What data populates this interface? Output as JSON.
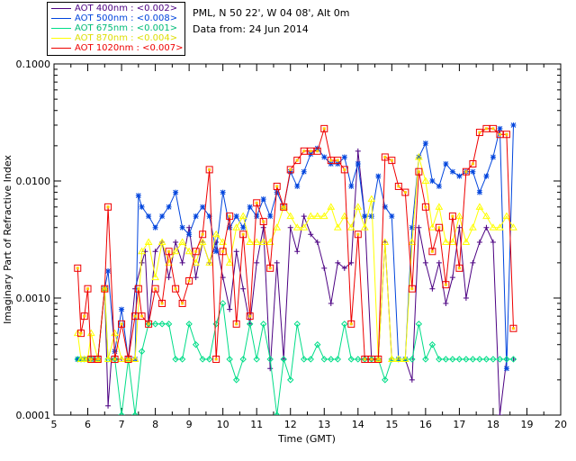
{
  "chart_data": {
    "type": "line",
    "site_line": "PML, N 50 22', W 04 08', Alt 0m",
    "date_line": "Data from: 24 Jun 2014",
    "xlabel": "Time (GMT)",
    "ylabel": "Imaginary Part of Refractive Index",
    "xlim": [
      5,
      20
    ],
    "ylim": [
      0.0001,
      0.1
    ],
    "yscale": "log",
    "x_ticks": [
      "5",
      "6",
      "7",
      "8",
      "9",
      "10",
      "11",
      "12",
      "13",
      "14",
      "15",
      "16",
      "17",
      "18",
      "19",
      "20"
    ],
    "y_ticks": [
      "0.0001",
      "0.0010",
      "0.0100",
      "0.1000"
    ],
    "series": [
      {
        "name": "AOT  400nm : <0.002>",
        "color": "#4b0082",
        "marker": "plus",
        "x": [
          5.7,
          5.8,
          5.9,
          6.0,
          6.1,
          6.3,
          6.5,
          6.6,
          6.7,
          6.8,
          7.0,
          7.2,
          7.4,
          7.6,
          7.7,
          7.8,
          8.0,
          8.2,
          8.4,
          8.6,
          8.8,
          9.0,
          9.2,
          9.4,
          9.6,
          9.8,
          10.0,
          10.2,
          10.4,
          10.6,
          10.8,
          11.0,
          11.2,
          11.4,
          11.6,
          11.8,
          12.0,
          12.2,
          12.4,
          12.6,
          12.8,
          13.0,
          13.2,
          13.4,
          13.6,
          13.8,
          14.0,
          14.2,
          14.4,
          14.6,
          14.8,
          15.0,
          15.2,
          15.4,
          15.6,
          15.8,
          16.0,
          16.2,
          16.4,
          16.6,
          16.8,
          17.0,
          17.2,
          17.4,
          17.6,
          17.8,
          18.0,
          18.2,
          18.4,
          18.6
        ],
        "values": [
          0.0003,
          0.0003,
          0.0003,
          0.0003,
          0.0003,
          0.0003,
          0.0012,
          0.00012,
          0.0003,
          0.0003,
          0.0003,
          0.0003,
          0.0012,
          0.002,
          0.0025,
          0.0006,
          0.0025,
          0.003,
          0.0015,
          0.003,
          0.002,
          0.004,
          0.0015,
          0.003,
          0.002,
          0.003,
          0.0015,
          0.0008,
          0.0025,
          0.0012,
          0.0006,
          0.002,
          0.004,
          0.00025,
          0.002,
          0.0003,
          0.004,
          0.0025,
          0.005,
          0.0035,
          0.003,
          0.0018,
          0.0009,
          0.002,
          0.0018,
          0.002,
          0.018,
          0.005,
          0.0003,
          0.0003,
          0.003,
          0.0003,
          0.0003,
          0.0003,
          0.0002,
          0.004,
          0.002,
          0.0012,
          0.002,
          0.0009,
          0.0015,
          0.004,
          0.001,
          0.002,
          0.003,
          0.004,
          0.003,
          0.0001,
          0.0003,
          0.0003
        ]
      },
      {
        "name": "AOT  500nm : <0.008>",
        "color": "#0044dd",
        "marker": "asterisk",
        "x": [
          5.7,
          5.8,
          5.9,
          6.0,
          6.1,
          6.3,
          6.5,
          6.6,
          6.8,
          7.0,
          7.2,
          7.4,
          7.5,
          7.6,
          7.8,
          8.0,
          8.2,
          8.4,
          8.6,
          8.8,
          9.0,
          9.2,
          9.4,
          9.6,
          9.8,
          10.0,
          10.2,
          10.4,
          10.6,
          10.8,
          11.0,
          11.2,
          11.4,
          11.6,
          11.8,
          12.0,
          12.2,
          12.4,
          12.6,
          12.8,
          13.0,
          13.2,
          13.4,
          13.6,
          13.8,
          14.0,
          14.2,
          14.4,
          14.6,
          14.8,
          15.0,
          15.2,
          15.4,
          15.6,
          15.8,
          16.0,
          16.2,
          16.4,
          16.6,
          16.8,
          17.0,
          17.2,
          17.4,
          17.6,
          17.8,
          18.0,
          18.2,
          18.4,
          18.6
        ],
        "values": [
          0.0003,
          0.0003,
          0.0003,
          0.0003,
          0.0003,
          0.0003,
          0.0012,
          0.0017,
          0.00035,
          0.0008,
          0.0003,
          0.0003,
          0.0075,
          0.006,
          0.005,
          0.004,
          0.005,
          0.006,
          0.008,
          0.004,
          0.0035,
          0.005,
          0.006,
          0.005,
          0.0025,
          0.008,
          0.004,
          0.005,
          0.004,
          0.006,
          0.005,
          0.007,
          0.005,
          0.008,
          0.006,
          0.012,
          0.009,
          0.012,
          0.017,
          0.019,
          0.016,
          0.014,
          0.014,
          0.016,
          0.009,
          0.014,
          0.005,
          0.005,
          0.011,
          0.006,
          0.005,
          0.0003,
          0.0003,
          0.004,
          0.016,
          0.021,
          0.01,
          0.009,
          0.014,
          0.012,
          0.011,
          0.012,
          0.012,
          0.008,
          0.011,
          0.016,
          0.028,
          0.00025,
          0.03
        ]
      },
      {
        "name": "AOT  675nm : <0.001>",
        "color": "#00dd88",
        "marker": "diamond",
        "x": [
          5.7,
          5.8,
          5.9,
          6.0,
          6.1,
          6.3,
          6.5,
          6.6,
          6.8,
          7.0,
          7.2,
          7.4,
          7.6,
          7.8,
          8.0,
          8.2,
          8.4,
          8.6,
          8.8,
          9.0,
          9.2,
          9.4,
          9.6,
          9.8,
          10.0,
          10.2,
          10.4,
          10.6,
          10.8,
          11.0,
          11.2,
          11.4,
          11.6,
          11.8,
          12.0,
          12.2,
          12.4,
          12.6,
          12.8,
          13.0,
          13.2,
          13.4,
          13.6,
          13.8,
          14.0,
          14.2,
          14.4,
          14.6,
          14.8,
          15.0,
          15.2,
          15.4,
          15.6,
          15.8,
          16.0,
          16.2,
          16.4,
          16.6,
          16.8,
          17.0,
          17.2,
          17.4,
          17.6,
          17.8,
          18.0,
          18.2,
          18.4,
          18.6
        ],
        "values": [
          0.0003,
          0.0003,
          0.0003,
          0.0003,
          0.0003,
          0.0003,
          0.0012,
          0.0003,
          0.0003,
          0.0001,
          0.0003,
          0.0001,
          0.00035,
          0.0006,
          0.0006,
          0.0006,
          0.0006,
          0.0003,
          0.0003,
          0.0006,
          0.0004,
          0.0003,
          0.0003,
          0.0006,
          0.0009,
          0.0003,
          0.0002,
          0.0003,
          0.0006,
          0.0003,
          0.0006,
          0.0003,
          0.0001,
          0.0003,
          0.0002,
          0.0006,
          0.0003,
          0.0003,
          0.0004,
          0.0003,
          0.0003,
          0.0003,
          0.0006,
          0.0003,
          0.0003,
          0.0003,
          0.0003,
          0.0003,
          0.0002,
          0.0003,
          0.0003,
          0.0003,
          0.0003,
          0.0006,
          0.0003,
          0.0004,
          0.0003,
          0.0003,
          0.0003,
          0.0003,
          0.0003,
          0.0003,
          0.0003,
          0.0003,
          0.0003,
          0.0003,
          0.0003,
          0.0003
        ]
      },
      {
        "name": "AOT  870nm : <0.004>",
        "color": "#ffff00",
        "marker": "triangle",
        "x": [
          5.7,
          5.8,
          5.9,
          6.0,
          6.1,
          6.3,
          6.5,
          6.6,
          6.8,
          7.0,
          7.2,
          7.4,
          7.6,
          7.8,
          8.0,
          8.2,
          8.4,
          8.6,
          8.8,
          9.0,
          9.2,
          9.4,
          9.6,
          9.8,
          10.0,
          10.2,
          10.4,
          10.6,
          10.8,
          11.0,
          11.2,
          11.4,
          11.6,
          11.8,
          12.0,
          12.2,
          12.4,
          12.6,
          12.8,
          13.0,
          13.2,
          13.4,
          13.6,
          13.8,
          14.0,
          14.2,
          14.4,
          14.6,
          14.8,
          15.0,
          15.2,
          15.4,
          15.6,
          15.8,
          16.0,
          16.2,
          16.4,
          16.6,
          16.8,
          17.0,
          17.2,
          17.4,
          17.6,
          17.8,
          18.0,
          18.2,
          18.4,
          18.6
        ],
        "values": [
          0.0005,
          0.0003,
          0.0003,
          0.0003,
          0.0005,
          0.0003,
          0.0012,
          0.0003,
          0.0005,
          0.0003,
          0.0003,
          0.0003,
          0.0025,
          0.003,
          0.0015,
          0.003,
          0.002,
          0.0025,
          0.003,
          0.0025,
          0.002,
          0.003,
          0.002,
          0.0035,
          0.003,
          0.002,
          0.004,
          0.005,
          0.003,
          0.003,
          0.003,
          0.003,
          0.004,
          0.006,
          0.005,
          0.004,
          0.004,
          0.005,
          0.005,
          0.005,
          0.006,
          0.004,
          0.005,
          0.004,
          0.006,
          0.004,
          0.007,
          0.0003,
          0.003,
          0.0003,
          0.0003,
          0.0003,
          0.003,
          0.016,
          0.01,
          0.004,
          0.006,
          0.003,
          0.003,
          0.005,
          0.003,
          0.004,
          0.006,
          0.005,
          0.004,
          0.004,
          0.005,
          0.004
        ]
      },
      {
        "name": "AOT 1020nm : <0.007>",
        "color": "#ee0000",
        "marker": "square",
        "x": [
          5.7,
          5.8,
          5.9,
          6.0,
          6.1,
          6.3,
          6.5,
          6.6,
          6.8,
          7.0,
          7.2,
          7.4,
          7.5,
          7.6,
          7.8,
          8.0,
          8.2,
          8.4,
          8.6,
          8.8,
          9.0,
          9.2,
          9.4,
          9.6,
          9.8,
          10.0,
          10.2,
          10.4,
          10.6,
          10.8,
          11.0,
          11.2,
          11.4,
          11.6,
          11.8,
          12.0,
          12.2,
          12.4,
          12.6,
          12.8,
          13.0,
          13.2,
          13.4,
          13.6,
          13.8,
          14.0,
          14.2,
          14.4,
          14.6,
          14.8,
          15.0,
          15.2,
          15.4,
          15.6,
          15.8,
          16.0,
          16.2,
          16.4,
          16.6,
          16.8,
          17.0,
          17.2,
          17.4,
          17.6,
          17.8,
          18.0,
          18.2,
          18.4,
          18.6
        ],
        "values": [
          0.0018,
          0.0005,
          0.0007,
          0.0012,
          0.0003,
          0.0003,
          0.0012,
          0.006,
          0.0003,
          0.0006,
          0.0003,
          0.0007,
          0.0012,
          0.0007,
          0.0006,
          0.0012,
          0.0009,
          0.0025,
          0.0012,
          0.0009,
          0.0014,
          0.0025,
          0.0035,
          0.0125,
          0.0003,
          0.0025,
          0.005,
          0.0006,
          0.0035,
          0.0007,
          0.0065,
          0.0045,
          0.0018,
          0.009,
          0.006,
          0.0125,
          0.015,
          0.018,
          0.018,
          0.018,
          0.028,
          0.015,
          0.015,
          0.0125,
          0.0006,
          0.0035,
          0.0003,
          0.0003,
          0.0003,
          0.016,
          0.015,
          0.009,
          0.008,
          0.0012,
          0.012,
          0.006,
          0.0025,
          0.004,
          0.0013,
          0.005,
          0.0018,
          0.012,
          0.014,
          0.026,
          0.028,
          0.028,
          0.025,
          0.025,
          0.00055
        ]
      }
    ]
  }
}
